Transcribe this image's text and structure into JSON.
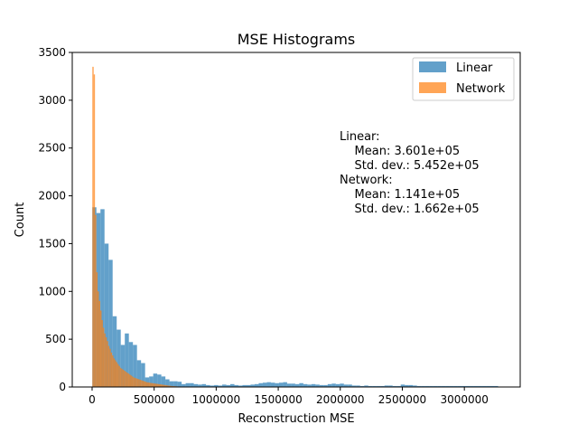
{
  "chart_data": {
    "type": "histogram",
    "title": "MSE Histograms",
    "xlabel": "Reconstruction MSE",
    "ylabel": "Count",
    "xlim": [
      -160000,
      3450000
    ],
    "ylim": [
      0,
      3500
    ],
    "xticks": [
      0,
      500000,
      1000000,
      1500000,
      2000000,
      2500000,
      3000000
    ],
    "xtick_labels": [
      "0",
      "500000",
      "1000000",
      "1500000",
      "2000000",
      "2500000",
      "3000000"
    ],
    "yticks": [
      0,
      500,
      1000,
      1500,
      2000,
      2500,
      3000,
      3500
    ],
    "ytick_labels": [
      "0",
      "500",
      "1000",
      "1500",
      "2000",
      "2500",
      "3000",
      "3500"
    ],
    "legend_position": "top-right",
    "series": [
      {
        "name": "Linear",
        "color": "#1f77b4",
        "opacity": 0.7,
        "bin_start": 2000,
        "bin_width": 32700,
        "values": [
          1880,
          1820,
          1860,
          1500,
          1330,
          740,
          600,
          440,
          560,
          470,
          440,
          280,
          250,
          100,
          110,
          140,
          130,
          110,
          80,
          60,
          60,
          55,
          30,
          40,
          40,
          30,
          25,
          30,
          20,
          15,
          20,
          15,
          25,
          20,
          30,
          20,
          15,
          20,
          20,
          25,
          30,
          40,
          45,
          50,
          45,
          40,
          45,
          50,
          35,
          35,
          30,
          40,
          30,
          25,
          30,
          25,
          20,
          20,
          30,
          35,
          30,
          35,
          25,
          25,
          15,
          15,
          10,
          15,
          10,
          10,
          10,
          10,
          15,
          15,
          10,
          10,
          25,
          20,
          20,
          15,
          10,
          10,
          10,
          10,
          10,
          10,
          10,
          10,
          10,
          10,
          10,
          10,
          10,
          10,
          10,
          10,
          10,
          10,
          10,
          10
        ]
      },
      {
        "name": "Network",
        "color": "#ff7f0e",
        "opacity": 0.7,
        "bin_start": 2000,
        "bin_width": 10600,
        "values": [
          3350,
          3270,
          1800,
          1200,
          1000,
          900,
          800,
          700,
          620,
          560,
          520,
          480,
          430,
          400,
          360,
          330,
          300,
          280,
          260,
          240,
          220,
          200,
          190,
          180,
          170,
          160,
          150,
          140,
          130,
          120,
          110,
          100,
          95,
          90,
          85,
          80,
          75,
          70,
          65,
          60,
          55,
          50,
          48,
          45,
          42,
          40,
          38,
          36,
          34,
          32,
          30,
          28,
          26,
          24,
          22,
          20,
          18,
          16,
          14,
          12,
          10,
          9,
          8,
          7,
          6,
          5,
          5,
          4,
          4,
          3
        ]
      }
    ],
    "annotation_lines": [
      "Linear:",
      "    Mean: 3.601e+05",
      "    Std. dev.: 5.452e+05",
      "Network:",
      "    Mean: 1.141e+05",
      "    Std. dev.: 1.662e+05"
    ]
  }
}
